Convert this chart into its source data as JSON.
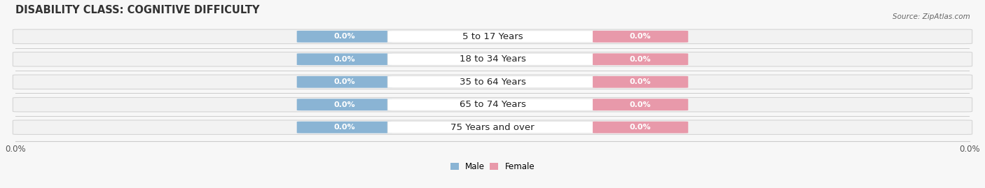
{
  "title": "DISABILITY CLASS: COGNITIVE DIFFICULTY",
  "source_text": "Source: ZipAtlas.com",
  "categories": [
    "5 to 17 Years",
    "18 to 34 Years",
    "35 to 64 Years",
    "65 to 74 Years",
    "75 Years and over"
  ],
  "male_values": [
    0.0,
    0.0,
    0.0,
    0.0,
    0.0
  ],
  "female_values": [
    0.0,
    0.0,
    0.0,
    0.0,
    0.0
  ],
  "male_color": "#8ab4d4",
  "female_color": "#e899aa",
  "bar_bg_color": "#f2f2f2",
  "bar_bg_edge_color": "#d5d5d5",
  "center_label_bg": "#ffffff",
  "title_fontsize": 10.5,
  "label_fontsize": 8.0,
  "category_fontsize": 9.5,
  "axis_label_fontsize": 8.5,
  "figsize": [
    14.06,
    2.69
  ],
  "dpi": 100,
  "background_color": "#f7f7f7",
  "legend_labels": [
    "Male",
    "Female"
  ]
}
